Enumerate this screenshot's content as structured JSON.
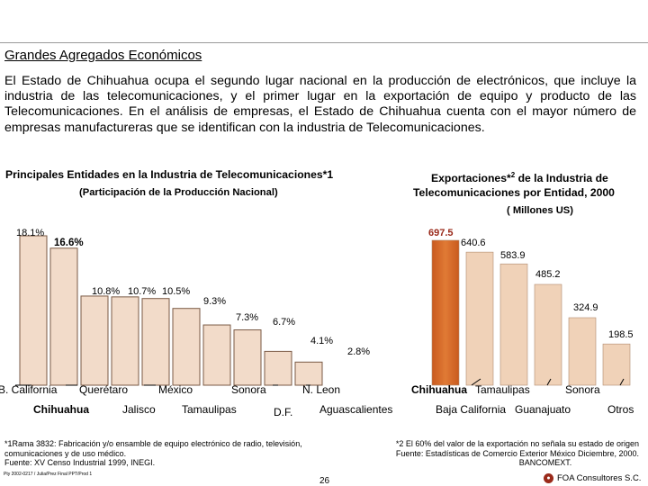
{
  "header": {
    "title": "Grandes Agregados Económicos",
    "paragraph": "El Estado de Chihuahua ocupa el segundo lugar nacional en la producción de electrónicos, que incluye la industria de las telecomunicaciones, y el primer lugar en la exportación de equipo y producto de las Telecomunicaciones. En el análisis de empresas, el Estado de Chihuahua cuenta con el mayor número de empresas manufactureras que se identifican con la industria de Telecomunicaciones."
  },
  "chart_data": [
    {
      "type": "bar",
      "title": "Principales Entidades en la Industria de Telecomunicaciones*1",
      "subtitle": "(Participación de la Producción Nacional)",
      "categories": [
        "B. California",
        "Chihuahua",
        "Querétaro",
        "Jalisco",
        "México",
        "Tamaulipas",
        "Sonora",
        "D.F.",
        "N. Leon",
        "Aguascalientes"
      ],
      "values": [
        18.1,
        16.6,
        10.8,
        10.7,
        10.5,
        9.3,
        7.3,
        6.7,
        4.1,
        2.8
      ],
      "value_labels": [
        "18.1%",
        "16.6%",
        "10.8%",
        "10.7%",
        "10.5%",
        "9.3%",
        "7.3%",
        "6.7%",
        "4.1%",
        "2.8%"
      ],
      "colors": {
        "bar": "#f2dbc9",
        "edge": "#7a5a45",
        "highlight_label": "#000000"
      }
    },
    {
      "type": "bar",
      "title": "Exportaciones*2 de la Industria de Telecomunicaciones por Entidad, 2000",
      "subtitle": "( Millones US)",
      "categories": [
        "Chihuahua",
        "Baja California",
        "Tamaulipas",
        "Guanajuato",
        "Sonora",
        "Otros"
      ],
      "values": [
        697.5,
        640.6,
        583.9,
        485.2,
        324.9,
        198.5
      ],
      "value_labels": [
        "697.5",
        "640.6",
        "583.9",
        "485.2",
        "324.9",
        "198.5"
      ],
      "colors": {
        "highlight": "#e07a35",
        "bar": "#f0d2b8"
      }
    }
  ],
  "footnotes": {
    "left": [
      "*1Rama 3832: Fabricación y/o ensamble de equipo electrónico de radio, televisión,",
      "comunicaciones y de uso médico.",
      "Fuente: XV Censo Industrial 1999, INEGI."
    ],
    "right": [
      "*2 El 60% del valor de la exportación no señala su estado de origen",
      "Fuente: Estadísticas de Comercio Exterior México Diciembre, 2000.",
      "BANCOMEXT."
    ]
  },
  "footer": {
    "file_code": "Pty 2002-0217 / Julia/Prez Final PPT/Prod 1",
    "page": "26",
    "brand": "FOA Consultores S.C."
  }
}
